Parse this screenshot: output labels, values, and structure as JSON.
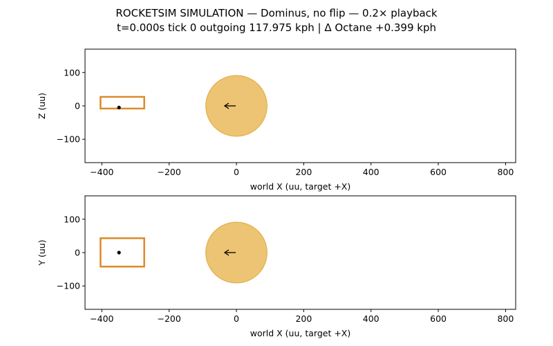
{
  "title": {
    "line1": "ROCKETSIM SIMULATION — Dominus, no flip — 0.2× playback",
    "line2": "t=0.000s  tick 0    outgoing 117.975 kph  |  Δ Octane +0.399 kph"
  },
  "colors": {
    "car_box": "#db8a2a",
    "ball_fill": "#e7b550",
    "ball_edge": "#e2b04c",
    "marker": "#000000"
  },
  "chart_data": [
    {
      "type": "scatter",
      "view": "side",
      "xlabel": "world X (uu, target +X)",
      "ylabel": "Z (uu)",
      "xlim": [
        -450,
        830
      ],
      "ylim": [
        -170,
        170
      ],
      "xticks": [
        -400,
        -200,
        0,
        200,
        400,
        600,
        800
      ],
      "xtick_labels": [
        "−400",
        "−200",
        "0",
        "200",
        "400",
        "600",
        "800"
      ],
      "yticks": [
        100,
        0,
        -100
      ],
      "ytick_labels": [
        "100",
        "0",
        "−100"
      ],
      "car_box": {
        "x0": -404,
        "x1": -274,
        "y0": -8,
        "y1": 27
      },
      "car_center": {
        "x": -349,
        "y": -5
      },
      "ball": {
        "x": 0,
        "y": 0,
        "r": 91
      },
      "velocity_arrow": {
        "x_from": -2,
        "x_to": -35,
        "y": 0
      }
    },
    {
      "type": "scatter",
      "view": "top",
      "xlabel": "world X (uu, target +X)",
      "ylabel": "Y (uu)",
      "xlim": [
        -450,
        830
      ],
      "ylim": [
        -170,
        170
      ],
      "xticks": [
        -400,
        -200,
        0,
        200,
        400,
        600,
        800
      ],
      "xtick_labels": [
        "−400",
        "−200",
        "0",
        "200",
        "400",
        "600",
        "800"
      ],
      "yticks": [
        100,
        0,
        -100
      ],
      "ytick_labels": [
        "100",
        "0",
        "−100"
      ],
      "car_box": {
        "x0": -404,
        "x1": -274,
        "y0": -42,
        "y1": 43
      },
      "car_center": {
        "x": -349,
        "y": 0
      },
      "ball": {
        "x": 0,
        "y": 0,
        "r": 91
      },
      "velocity_arrow": {
        "x_from": -2,
        "x_to": -35,
        "y": 0
      }
    }
  ]
}
